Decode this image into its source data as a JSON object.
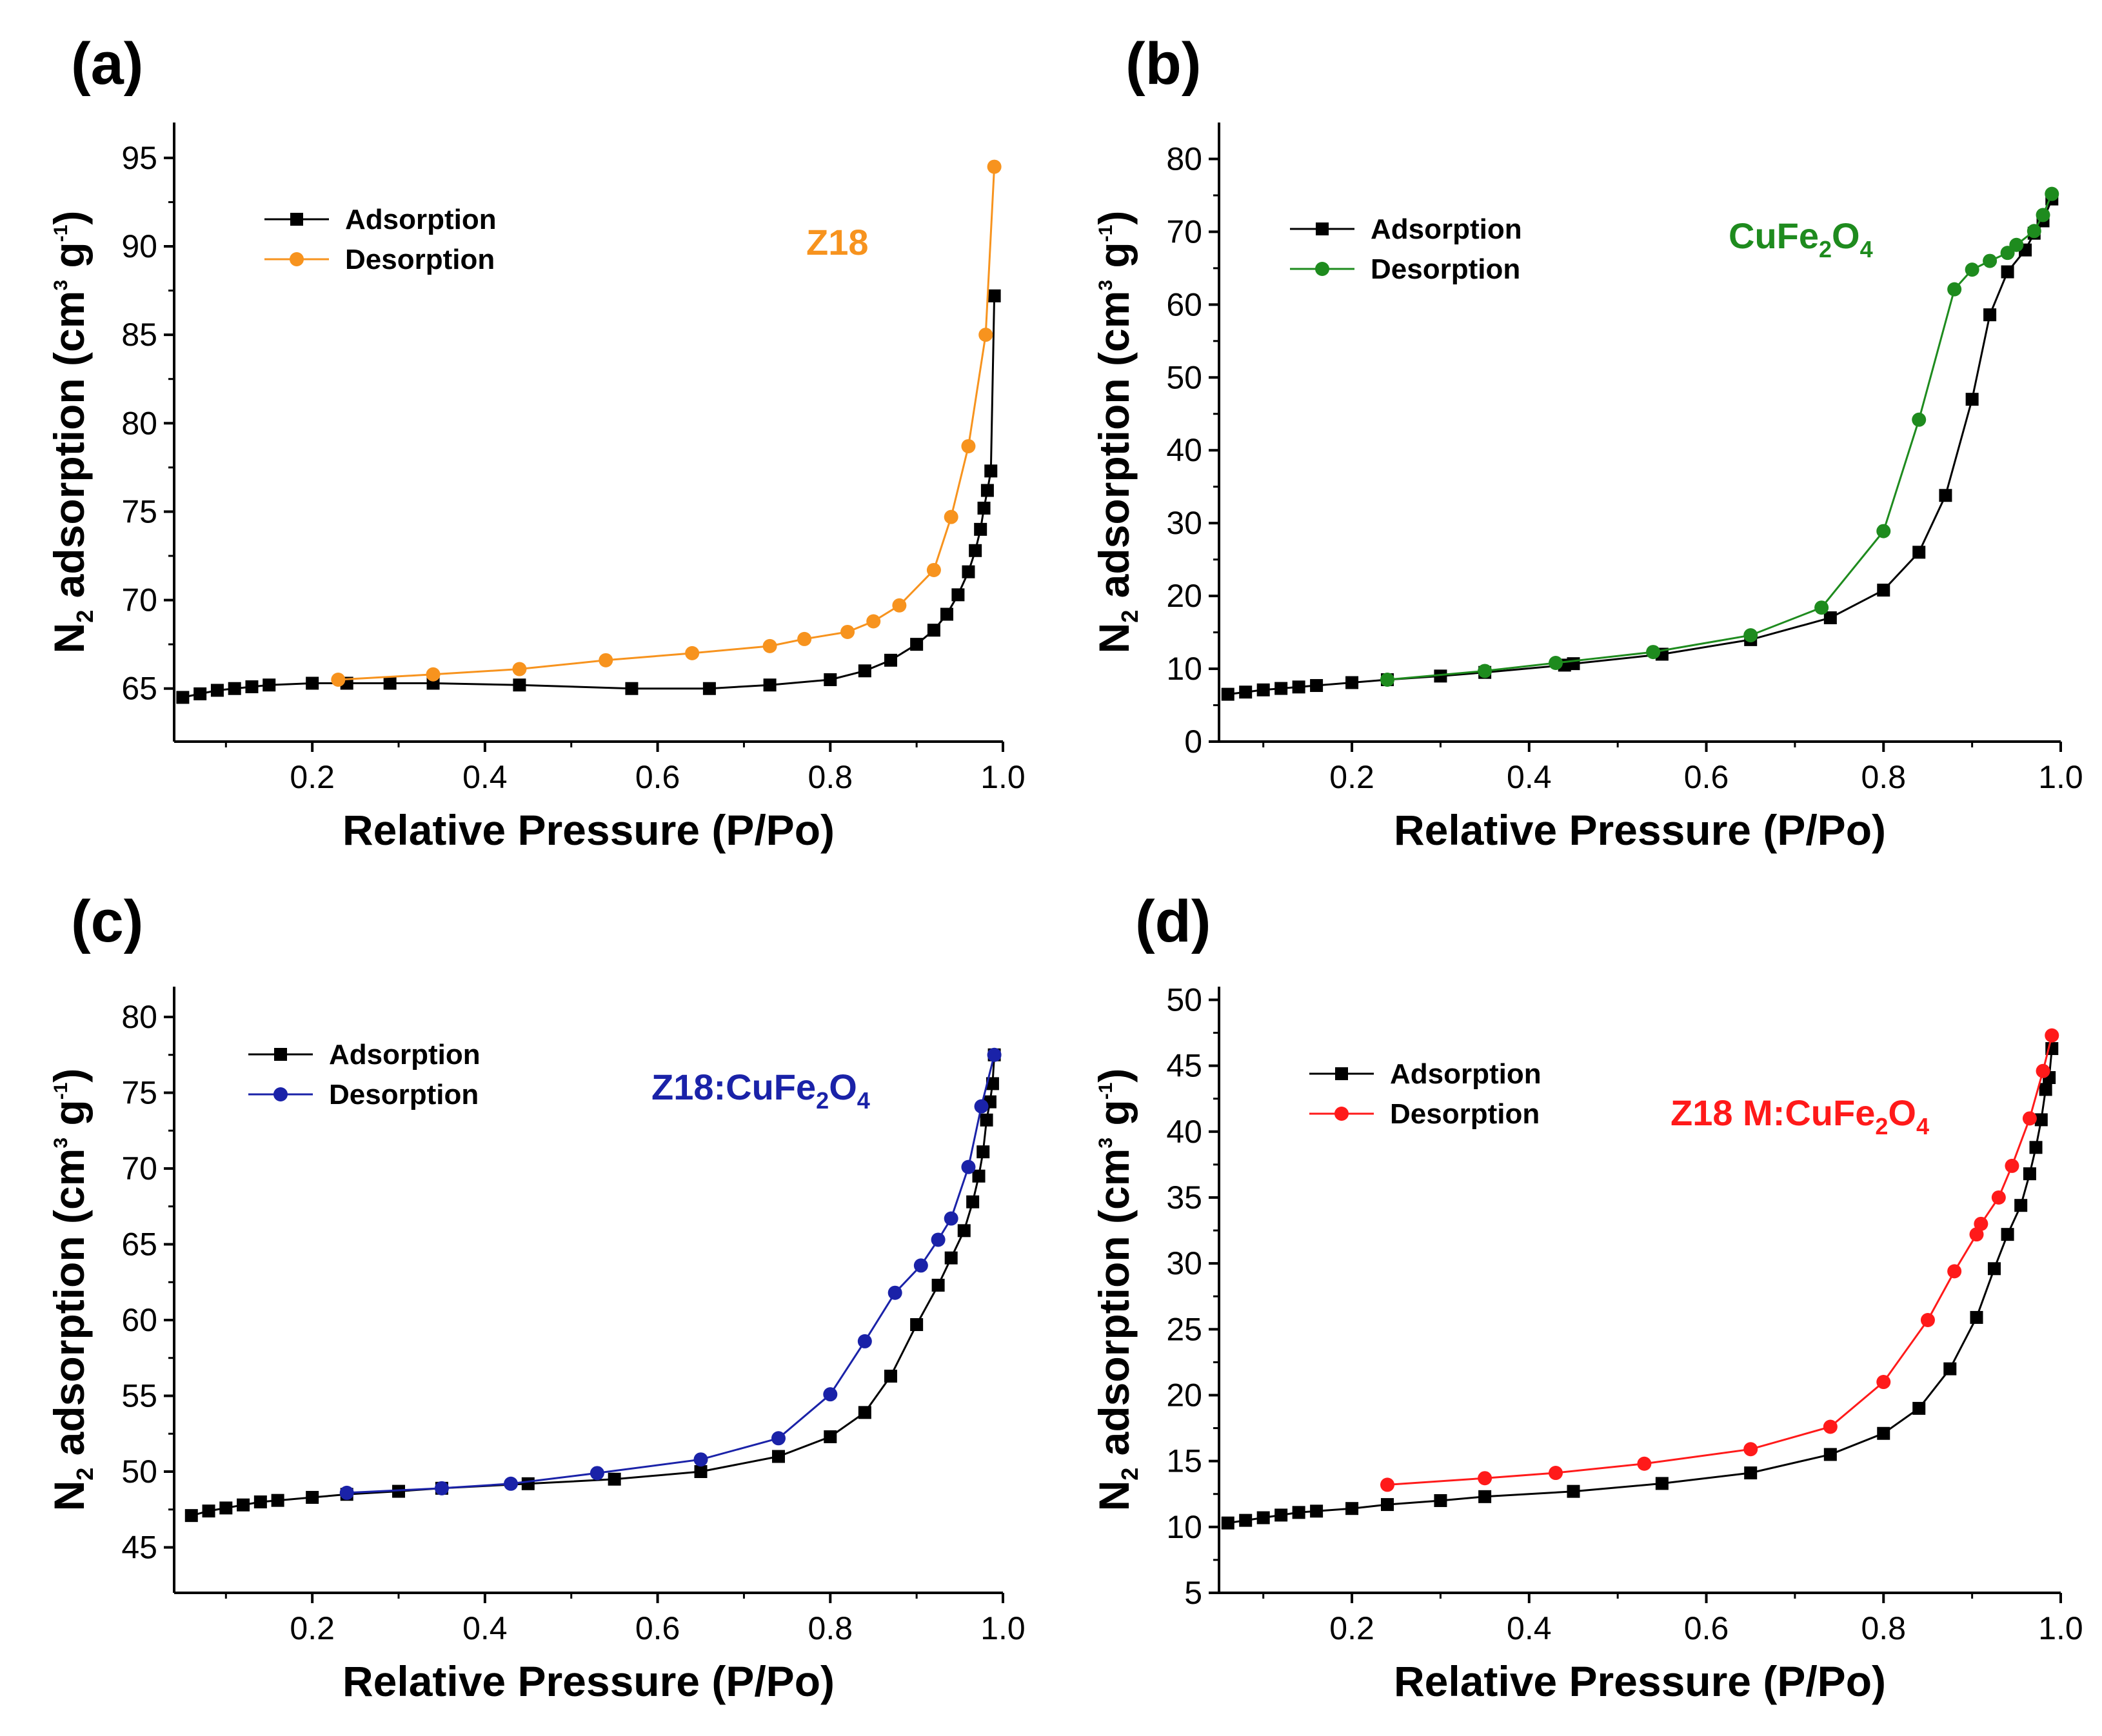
{
  "chart_data": [
    {
      "type": "line",
      "panel_label": "(a)",
      "sample": {
        "text": "Z18",
        "sub": "",
        "text2": "",
        "sub2": ""
      },
      "xlabel": "Relative Pressure (P/Po)",
      "ylabel": {
        "main": "N",
        "sub": "2",
        "rest": " adsorption (cm",
        "sup1": "3",
        "mid": " g",
        "sup2": "-1",
        "end": ")"
      },
      "xlim": [
        0.04,
        1.0
      ],
      "ylim": [
        62,
        97
      ],
      "xticks": [
        "0.2",
        "0.4",
        "0.6",
        "0.8",
        "1.0"
      ],
      "xtick_values": [
        0.2,
        0.4,
        0.6,
        0.8,
        1.0
      ],
      "yticks": [
        "65",
        "70",
        "75",
        "80",
        "85",
        "90",
        "95"
      ],
      "ytick_values": [
        65,
        70,
        75,
        80,
        85,
        90,
        95
      ],
      "series": [
        {
          "name": "Adsorption",
          "color": "#000000",
          "marker": "square",
          "x": [
            0.05,
            0.07,
            0.09,
            0.11,
            0.13,
            0.15,
            0.2,
            0.24,
            0.29,
            0.34,
            0.44,
            0.57,
            0.66,
            0.73,
            0.8,
            0.84,
            0.87,
            0.9,
            0.92,
            0.935,
            0.948,
            0.96,
            0.968,
            0.974,
            0.978,
            0.982,
            0.986,
            0.99
          ],
          "y": [
            64.5,
            64.7,
            64.9,
            65.0,
            65.1,
            65.2,
            65.3,
            65.3,
            65.3,
            65.3,
            65.2,
            65.0,
            65.0,
            65.2,
            65.5,
            66.0,
            66.6,
            67.5,
            68.3,
            69.2,
            70.3,
            71.6,
            72.8,
            74.0,
            75.2,
            76.2,
            77.3,
            87.2
          ]
        },
        {
          "name": "Desorption",
          "color": "#F7931E",
          "marker": "circle",
          "x": [
            0.23,
            0.34,
            0.44,
            0.54,
            0.64,
            0.73,
            0.77,
            0.82,
            0.85,
            0.88,
            0.92,
            0.94,
            0.96,
            0.98,
            0.99
          ],
          "y": [
            65.5,
            65.8,
            66.1,
            66.6,
            67.0,
            67.4,
            67.8,
            68.2,
            68.8,
            69.7,
            71.7,
            74.7,
            78.7,
            85.0,
            94.5
          ]
        }
      ]
    },
    {
      "type": "line",
      "panel_label": "(b)",
      "sample": {
        "text": "CuFe",
        "sub": "2",
        "text2": "O",
        "sub2": "4"
      },
      "xlabel": "Relative Pressure (P/Po)",
      "ylabel": {
        "main": "N",
        "sub": "2",
        "rest": " adsorption (cm",
        "sup1": "3",
        "mid": " g",
        "sup2": "-1",
        "end": ")"
      },
      "xlim": [
        0.05,
        1.0
      ],
      "ylim": [
        0,
        85
      ],
      "xticks": [
        "0.2",
        "0.4",
        "0.6",
        "0.8",
        "1.0"
      ],
      "xtick_values": [
        0.2,
        0.4,
        0.6,
        0.8,
        1.0
      ],
      "yticks": [
        "0",
        "10",
        "20",
        "30",
        "40",
        "50",
        "60",
        "70",
        "80"
      ],
      "ytick_values": [
        0,
        10,
        20,
        30,
        40,
        50,
        60,
        70,
        80
      ],
      "series": [
        {
          "name": "Adsorption",
          "color": "#000000",
          "marker": "square",
          "x": [
            0.06,
            0.08,
            0.1,
            0.12,
            0.14,
            0.16,
            0.2,
            0.24,
            0.3,
            0.35,
            0.44,
            0.45,
            0.55,
            0.65,
            0.74,
            0.8,
            0.84,
            0.87,
            0.9,
            0.92,
            0.94,
            0.96,
            0.97,
            0.98,
            0.99
          ],
          "y": [
            6.5,
            6.8,
            7.1,
            7.3,
            7.5,
            7.7,
            8.1,
            8.5,
            9.0,
            9.5,
            10.5,
            10.7,
            12.0,
            14.0,
            17.0,
            20.8,
            26.0,
            33.8,
            47.0,
            58.6,
            64.5,
            67.5,
            69.8,
            71.5,
            74.5
          ]
        },
        {
          "name": "Desorption",
          "color": "#1E8B1E",
          "marker": "circle",
          "x": [
            0.24,
            0.35,
            0.43,
            0.54,
            0.65,
            0.73,
            0.8,
            0.84,
            0.88,
            0.9,
            0.92,
            0.94,
            0.95,
            0.97,
            0.98,
            0.99
          ],
          "y": [
            8.5,
            9.7,
            10.8,
            12.3,
            14.6,
            18.4,
            28.9,
            44.2,
            62.1,
            64.8,
            66.0,
            67.1,
            68.2,
            70.1,
            72.3,
            75.2
          ]
        }
      ]
    },
    {
      "type": "line",
      "panel_label": "(c)",
      "sample": {
        "text": "Z18:CuFe",
        "sub": "2",
        "text2": "O",
        "sub2": "4"
      },
      "xlabel": "Relative Pressure (P/Po)",
      "ylabel": {
        "main": "N",
        "sub": "2",
        "rest": " adsorption (cm",
        "sup1": "3",
        "mid": " g",
        "sup2": "-1",
        "end": ")"
      },
      "xlim": [
        0.04,
        1.0
      ],
      "ylim": [
        42,
        82
      ],
      "xticks": [
        "0.2",
        "0.4",
        "0.6",
        "0.8",
        "1.0"
      ],
      "xtick_values": [
        0.2,
        0.4,
        0.6,
        0.8,
        1.0
      ],
      "yticks": [
        "45",
        "50",
        "55",
        "60",
        "65",
        "70",
        "75",
        "80"
      ],
      "ytick_values": [
        45,
        50,
        55,
        60,
        65,
        70,
        75,
        80
      ],
      "series": [
        {
          "name": "Adsorption",
          "color": "#000000",
          "marker": "square",
          "x": [
            0.06,
            0.08,
            0.1,
            0.12,
            0.14,
            0.16,
            0.2,
            0.24,
            0.3,
            0.35,
            0.45,
            0.55,
            0.65,
            0.74,
            0.8,
            0.84,
            0.87,
            0.9,
            0.925,
            0.94,
            0.955,
            0.965,
            0.972,
            0.977,
            0.981,
            0.985,
            0.988,
            0.99
          ],
          "y": [
            47.1,
            47.4,
            47.6,
            47.8,
            48.0,
            48.1,
            48.3,
            48.5,
            48.7,
            48.9,
            49.2,
            49.5,
            50.0,
            51.0,
            52.3,
            53.9,
            56.3,
            59.7,
            62.3,
            64.1,
            65.9,
            67.8,
            69.5,
            71.1,
            73.2,
            74.4,
            75.6,
            77.5
          ]
        },
        {
          "name": "Desorption",
          "color": "#1A22A8",
          "marker": "circle",
          "x": [
            0.24,
            0.35,
            0.43,
            0.53,
            0.65,
            0.74,
            0.8,
            0.84,
            0.875,
            0.905,
            0.925,
            0.94,
            0.96,
            0.975,
            0.99
          ],
          "y": [
            48.6,
            48.9,
            49.2,
            49.9,
            50.8,
            52.2,
            55.1,
            58.6,
            61.8,
            63.6,
            65.3,
            66.7,
            70.1,
            74.1,
            77.5
          ]
        }
      ]
    },
    {
      "type": "line",
      "panel_label": "(d)",
      "sample": {
        "text": "Z18 M:CuFe",
        "sub": "2",
        "text2": "O",
        "sub2": "4"
      },
      "xlabel": "Relative Pressure (P/Po)",
      "ylabel": {
        "main": "N",
        "sub": "2",
        "rest": " adsorption (cm",
        "sup1": "3",
        "mid": " g",
        "sup2": "-1",
        "end": ")"
      },
      "xlim": [
        0.05,
        1.0
      ],
      "ylim": [
        5,
        51
      ],
      "xticks": [
        "0.2",
        "0.4",
        "0.6",
        "0.8",
        "1.0"
      ],
      "xtick_values": [
        0.2,
        0.4,
        0.6,
        0.8,
        1.0
      ],
      "yticks": [
        "5",
        "10",
        "15",
        "20",
        "25",
        "30",
        "35",
        "40",
        "45",
        "50"
      ],
      "ytick_values": [
        5,
        10,
        15,
        20,
        25,
        30,
        35,
        40,
        45,
        50
      ],
      "series": [
        {
          "name": "Adsorption",
          "color": "#000000",
          "marker": "square",
          "x": [
            0.06,
            0.08,
            0.1,
            0.12,
            0.14,
            0.16,
            0.2,
            0.24,
            0.3,
            0.35,
            0.45,
            0.55,
            0.65,
            0.74,
            0.8,
            0.84,
            0.875,
            0.905,
            0.925,
            0.94,
            0.955,
            0.965,
            0.972,
            0.978,
            0.983,
            0.987,
            0.99
          ],
          "y": [
            10.3,
            10.5,
            10.7,
            10.9,
            11.1,
            11.2,
            11.4,
            11.7,
            12.0,
            12.3,
            12.7,
            13.3,
            14.1,
            15.5,
            17.1,
            19.0,
            22.0,
            25.9,
            29.6,
            32.2,
            34.4,
            36.8,
            38.8,
            40.9,
            43.2,
            44.1,
            46.3
          ]
        },
        {
          "name": "Desorption",
          "color": "#FF1A1A",
          "marker": "circle",
          "x": [
            0.24,
            0.35,
            0.43,
            0.53,
            0.65,
            0.74,
            0.8,
            0.85,
            0.88,
            0.905,
            0.91,
            0.93,
            0.945,
            0.965,
            0.98,
            0.99
          ],
          "y": [
            13.2,
            13.7,
            14.1,
            14.8,
            15.9,
            17.6,
            21.0,
            25.7,
            29.4,
            32.2,
            33.0,
            35.0,
            37.4,
            41.0,
            44.6,
            47.3
          ]
        }
      ]
    }
  ]
}
